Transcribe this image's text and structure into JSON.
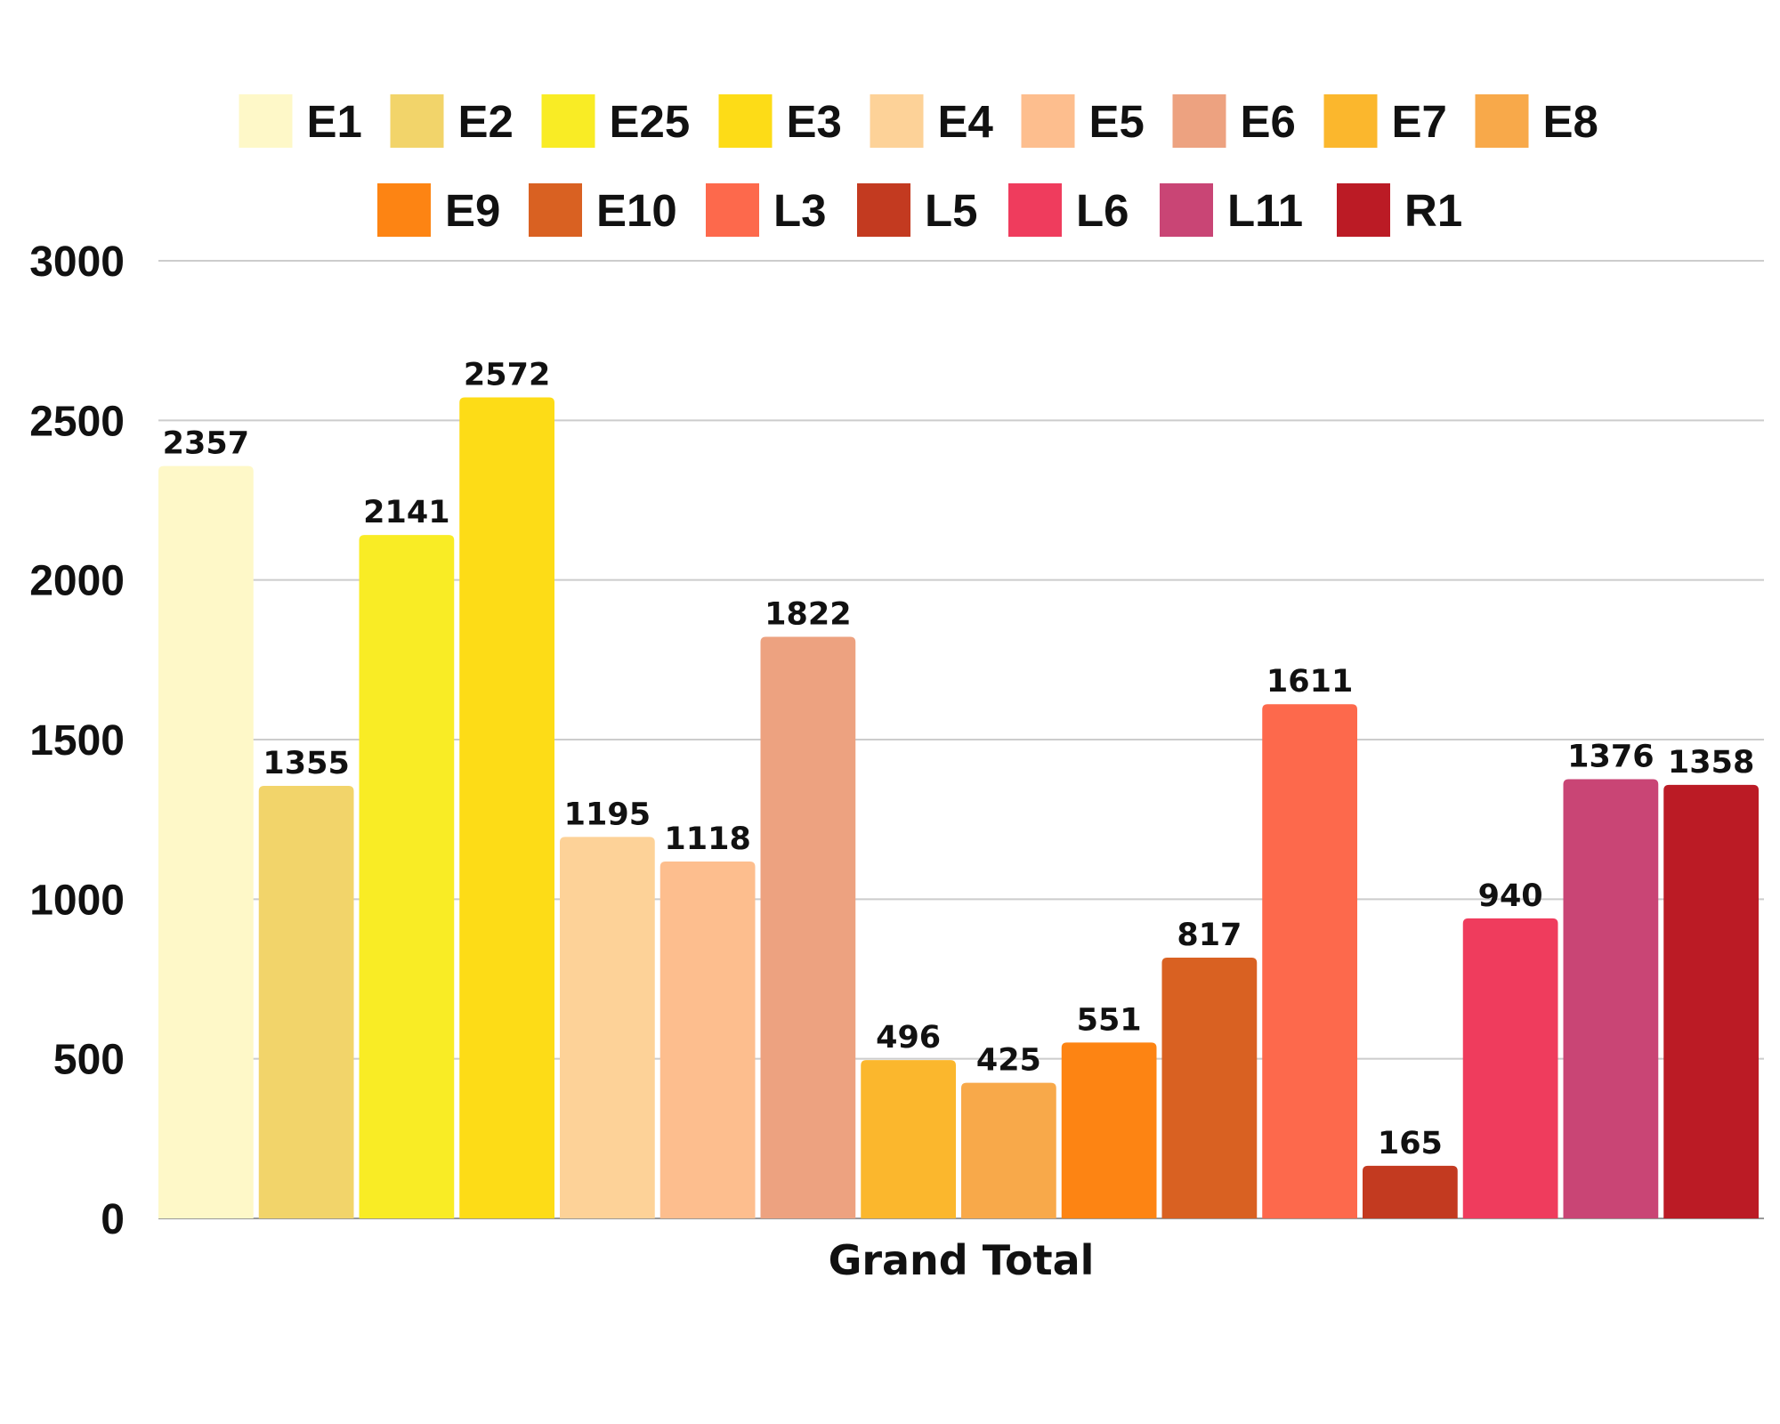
{
  "chart_data": {
    "type": "bar",
    "title": "",
    "xlabel": "Grand Total",
    "ylabel": "",
    "ylim": [
      0,
      3000
    ],
    "yticks": [
      0,
      500,
      1000,
      1500,
      2000,
      2500,
      3000
    ],
    "grid": true,
    "legend_position": "top",
    "categories": [
      "Grand Total"
    ],
    "series": [
      {
        "name": "E1",
        "values": [
          2357
        ],
        "color": "#FEF8C8"
      },
      {
        "name": "E2",
        "values": [
          1355
        ],
        "color": "#F2D46A"
      },
      {
        "name": "E25",
        "values": [
          2141
        ],
        "color": "#F9EC25"
      },
      {
        "name": "E3",
        "values": [
          2572
        ],
        "color": "#FDDC17"
      },
      {
        "name": "E4",
        "values": [
          1195
        ],
        "color": "#FDD298"
      },
      {
        "name": "E5",
        "values": [
          1118
        ],
        "color": "#FDBE8E"
      },
      {
        "name": "E6",
        "values": [
          1822
        ],
        "color": "#EDA280"
      },
      {
        "name": "E7",
        "values": [
          496
        ],
        "color": "#FBB72D"
      },
      {
        "name": "E8",
        "values": [
          425
        ],
        "color": "#F8A94A"
      },
      {
        "name": "E9",
        "values": [
          551
        ],
        "color": "#FD8413"
      },
      {
        "name": "E10",
        "values": [
          817
        ],
        "color": "#D96122"
      },
      {
        "name": "L3",
        "values": [
          1611
        ],
        "color": "#FD694C"
      },
      {
        "name": "L5",
        "values": [
          165
        ],
        "color": "#C33A20"
      },
      {
        "name": "L6",
        "values": [
          940
        ],
        "color": "#EF3C5D"
      },
      {
        "name": "L11",
        "values": [
          1376
        ],
        "color": "#C94575"
      },
      {
        "name": "R1",
        "values": [
          1358
        ],
        "color": "#BB1B25"
      }
    ]
  }
}
